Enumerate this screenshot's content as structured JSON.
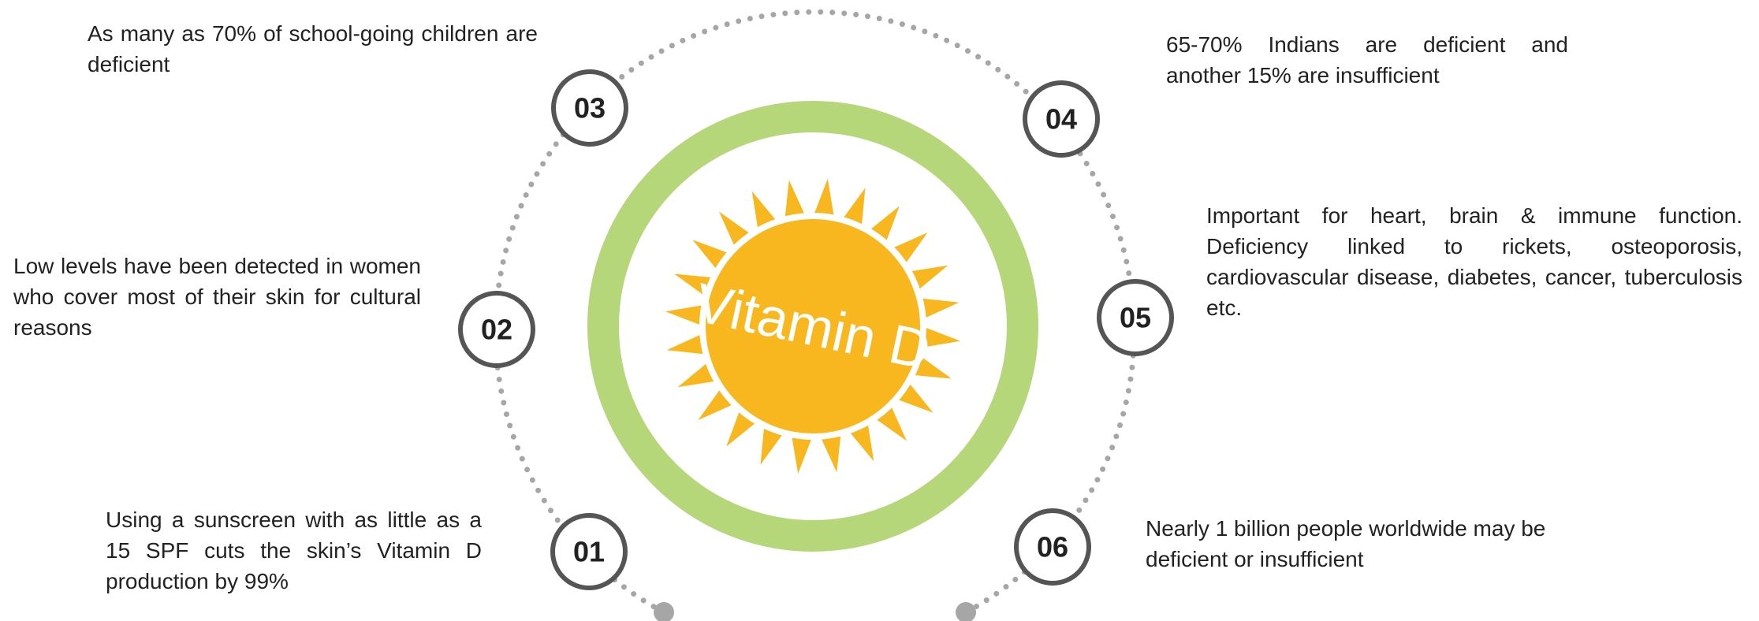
{
  "center_label": "Vitamin D",
  "items": [
    {
      "number": "01",
      "text": "Using a sunscreen with as little as a 15 SPF cuts the skin’s Vitamin D production by 99%"
    },
    {
      "number": "02",
      "text": "Low levels have been detected in women who cover most of their skin for cultural reasons"
    },
    {
      "number": "03",
      "text": "As many as 70% of school-going children are deficient"
    },
    {
      "number": "04",
      "text": "65-70% Indians are deficient and another 15% are insufficient"
    },
    {
      "number": "05",
      "text": "Important for heart, brain & immune function. Deficiency linked to rickets, osteoporosis, cardiovascular disease, diabetes, cancer, tuberculosis etc."
    },
    {
      "number": "06",
      "text": "Nearly 1 billion people worldwide may be deficient or insufficient"
    }
  ]
}
